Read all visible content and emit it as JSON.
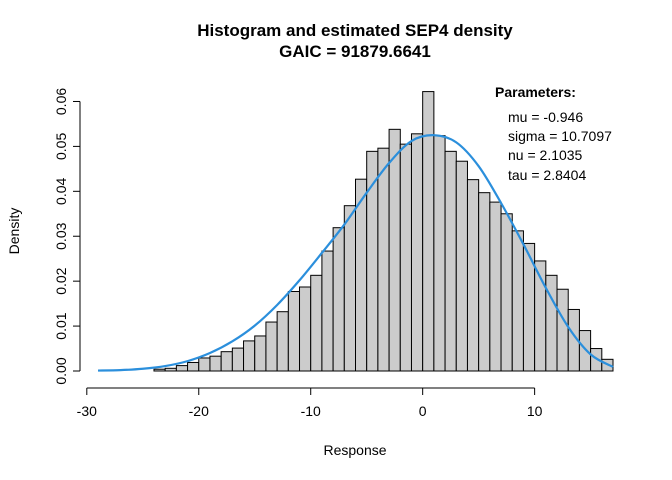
{
  "chart_data": {
    "type": "bar",
    "title": "Histogram and estimated SEP4 density",
    "subtitle": "GAIC = 91879.6641",
    "xlabel": "Response",
    "ylabel": "Density",
    "xlim": [
      -29,
      17
    ],
    "ylim": [
      0,
      0.063
    ],
    "x_ticks": [
      "-30",
      "-20",
      "-10",
      "0",
      "10"
    ],
    "x_tick_values": [
      -30,
      -20,
      -10,
      0,
      10
    ],
    "y_ticks": [
      "0.00",
      "0.01",
      "0.02",
      "0.03",
      "0.04",
      "0.05",
      "0.06"
    ],
    "y_tick_values": [
      0,
      0.01,
      0.02,
      0.03,
      0.04,
      0.05,
      0.06
    ],
    "bin_width": 1,
    "bins": [
      {
        "left": -24,
        "value": 0.0004
      },
      {
        "left": -23,
        "value": 0.0006
      },
      {
        "left": -22,
        "value": 0.0012
      },
      {
        "left": -21,
        "value": 0.0019
      },
      {
        "left": -20,
        "value": 0.0029
      },
      {
        "left": -19,
        "value": 0.0033
      },
      {
        "left": -18,
        "value": 0.0043
      },
      {
        "left": -17,
        "value": 0.0051
      },
      {
        "left": -16,
        "value": 0.0067
      },
      {
        "left": -15,
        "value": 0.0078
      },
      {
        "left": -14,
        "value": 0.0109
      },
      {
        "left": -13,
        "value": 0.0132
      },
      {
        "left": -12,
        "value": 0.0177
      },
      {
        "left": -11,
        "value": 0.0187
      },
      {
        "left": -10,
        "value": 0.0213
      },
      {
        "left": -9,
        "value": 0.0267
      },
      {
        "left": -8,
        "value": 0.0319
      },
      {
        "left": -7,
        "value": 0.0368
      },
      {
        "left": -6,
        "value": 0.0427
      },
      {
        "left": -5,
        "value": 0.0489
      },
      {
        "left": -4,
        "value": 0.0496
      },
      {
        "left": -3,
        "value": 0.0538
      },
      {
        "left": -2,
        "value": 0.0505
      },
      {
        "left": -1,
        "value": 0.0528
      },
      {
        "left": 0,
        "value": 0.0622
      },
      {
        "left": 1,
        "value": 0.0524
      },
      {
        "left": 2,
        "value": 0.0489
      },
      {
        "left": 3,
        "value": 0.0467
      },
      {
        "left": 4,
        "value": 0.0426
      },
      {
        "left": 5,
        "value": 0.0397
      },
      {
        "left": 6,
        "value": 0.0376
      },
      {
        "left": 7,
        "value": 0.035
      },
      {
        "left": 8,
        "value": 0.0312
      },
      {
        "left": 9,
        "value": 0.0284
      },
      {
        "left": 10,
        "value": 0.0245
      },
      {
        "left": 11,
        "value": 0.0213
      },
      {
        "left": 12,
        "value": 0.0182
      },
      {
        "left": 13,
        "value": 0.0137
      },
      {
        "left": 14,
        "value": 0.009
      },
      {
        "left": 15,
        "value": 0.005
      },
      {
        "left": 16,
        "value": 0.0026
      }
    ],
    "density_curve": {
      "x": [
        -29,
        -27,
        -25,
        -23,
        -21,
        -19,
        -17,
        -15,
        -13,
        -11,
        -9,
        -7,
        -5,
        -3,
        -1,
        1,
        3,
        5,
        7,
        9,
        11,
        13,
        15,
        17
      ],
      "y": [
        0.0001,
        0.0002,
        0.0005,
        0.0011,
        0.0022,
        0.004,
        0.0066,
        0.0101,
        0.0147,
        0.0202,
        0.0263,
        0.0326,
        0.0397,
        0.0463,
        0.0512,
        0.0525,
        0.0509,
        0.0456,
        0.0374,
        0.0282,
        0.0185,
        0.0098,
        0.0037,
        0.0009
      ],
      "color": "#2b8fdc"
    },
    "legend": {
      "title": "Parameters:",
      "lines": [
        "mu = -0.946",
        "sigma = 10.7097",
        "nu = 2.1035",
        "tau = 2.8404"
      ],
      "placement": "top-right"
    },
    "bar_color": "#cccccc",
    "grid": false
  }
}
